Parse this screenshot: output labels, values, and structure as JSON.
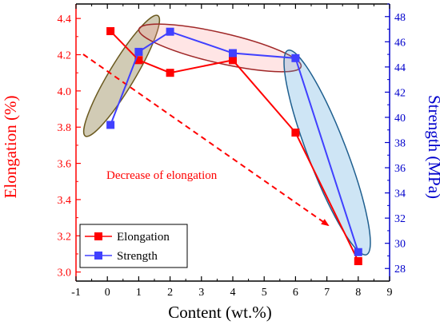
{
  "chart_data": {
    "type": "line",
    "xlabel": "Content (wt.%)",
    "ylabel_left": "Elongation (%)",
    "ylabel_right": "Strength (MPa)",
    "xlim": [
      -1,
      9
    ],
    "ylim_left": [
      2.95,
      4.48
    ],
    "ylim_right": [
      27,
      49
    ],
    "x_ticks": [
      "-1",
      "0",
      "1",
      "2",
      "3",
      "4",
      "5",
      "6",
      "7",
      "8",
      "9"
    ],
    "y_left_ticks": [
      "3.0",
      "3.2",
      "3.4",
      "3.6",
      "3.8",
      "4.0",
      "4.2",
      "4.4"
    ],
    "y_right_ticks": [
      "28",
      "30",
      "32",
      "34",
      "36",
      "38",
      "40",
      "42",
      "44",
      "46",
      "48"
    ],
    "series": [
      {
        "name": "Elongation",
        "axis": "left",
        "color": "#ff0000",
        "x": [
          0.1,
          1,
          2,
          4,
          6,
          8
        ],
        "y": [
          4.33,
          4.17,
          4.1,
          4.17,
          3.77,
          3.06
        ]
      },
      {
        "name": "Strength",
        "axis": "right",
        "color": "#4040ff",
        "x": [
          0.1,
          1,
          2,
          4,
          6,
          8
        ],
        "y": [
          39.4,
          45.2,
          46.8,
          45.1,
          44.7,
          29.3
        ]
      }
    ],
    "annotations": [
      {
        "text": "Decrease of elongation",
        "color": "#ff0000"
      }
    ],
    "legend_position": "bottom-left",
    "colors": {
      "left_axis": "#ff0000",
      "right_axis": "#0000cc",
      "ellipse_olive": "#7a6a2a",
      "ellipse_red": "#c03030",
      "ellipse_blue": "#1f5f8f"
    }
  }
}
